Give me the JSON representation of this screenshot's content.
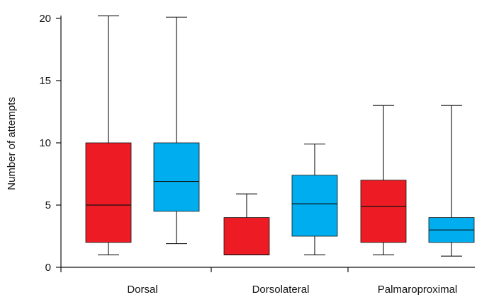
{
  "chart_data": {
    "type": "box",
    "ylabel": "Number of attempts",
    "ylim": [
      0,
      20
    ],
    "yticks": [
      0,
      5,
      10,
      15,
      20
    ],
    "categories": [
      "Dorsal",
      "Dorsolateral",
      "Palmaroproximal"
    ],
    "series": [
      {
        "color": "#ed1c24",
        "boxes": [
          {
            "min": 1,
            "q1": 2,
            "median": 5,
            "q3": 10,
            "max": 20.2
          },
          {
            "min": 1,
            "q1": 1,
            "median": 1,
            "q3": 4,
            "max": 5.9
          },
          {
            "min": 1,
            "q1": 2,
            "median": 4.9,
            "q3": 7,
            "max": 13
          }
        ]
      },
      {
        "color": "#00aeef",
        "boxes": [
          {
            "min": 1.9,
            "q1": 4.5,
            "median": 6.9,
            "q3": 10,
            "max": 20.1
          },
          {
            "min": 1,
            "q1": 2.5,
            "median": 5.1,
            "q3": 7.4,
            "max": 9.9
          },
          {
            "min": 0.9,
            "q1": 2,
            "median": 3,
            "q3": 4,
            "max": 13
          }
        ]
      }
    ],
    "grid": false,
    "legend": "none"
  }
}
